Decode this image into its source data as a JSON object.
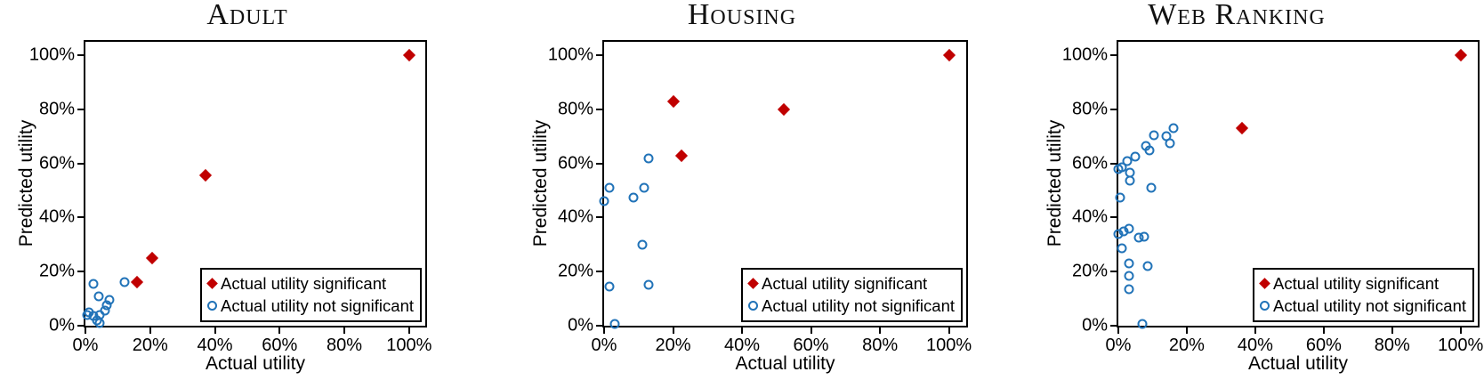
{
  "figure": {
    "legend": {
      "significant": "Actual utility significant",
      "not_significant": "Actual utility not significant"
    },
    "colors": {
      "significant": "#c00000",
      "not_significant": "#2173b8",
      "axis": "#000000",
      "background": "#ffffff"
    }
  },
  "chart_data": [
    {
      "type": "scatter",
      "title": "Adult",
      "xlabel": "Actual utility",
      "ylabel": "Predicted utility",
      "xlim": [
        0,
        105
      ],
      "ylim": [
        0,
        105
      ],
      "grid": false,
      "legend_position": "lower right",
      "tick_values": [
        0,
        20,
        40,
        60,
        80,
        100
      ],
      "xticks": [
        "0%",
        "20%",
        "40%",
        "60%",
        "80%",
        "100%"
      ],
      "yticks": [
        "0%",
        "20%",
        "40%",
        "60%",
        "80%",
        "100%"
      ],
      "series": [
        {
          "name": "Actual utility significant",
          "marker": "diamond",
          "color": "#c00000",
          "points": [
            [
              100,
              100
            ],
            [
              37,
              55.5
            ],
            [
              20.5,
              25
            ],
            [
              16,
              16
            ]
          ]
        },
        {
          "name": "Actual utility not significant",
          "marker": "circle",
          "color": "#2173b8",
          "points": [
            [
              2.5,
              15.5
            ],
            [
              12,
              16
            ],
            [
              4,
              11
            ],
            [
              7.5,
              9.5
            ],
            [
              6.5,
              7.5
            ],
            [
              6,
              5.5
            ],
            [
              1,
              5
            ],
            [
              0.5,
              4
            ],
            [
              2.5,
              3.5
            ],
            [
              4.5,
              4
            ],
            [
              3.5,
              2
            ],
            [
              4.5,
              1
            ]
          ]
        }
      ]
    },
    {
      "type": "scatter",
      "title": "Housing",
      "xlabel": "Actual utility",
      "ylabel": "Predicted utility",
      "xlim": [
        0,
        105
      ],
      "ylim": [
        0,
        105
      ],
      "grid": false,
      "legend_position": "lower right",
      "tick_values": [
        0,
        20,
        40,
        60,
        80,
        100
      ],
      "xticks": [
        "0%",
        "20%",
        "40%",
        "60%",
        "80%",
        "100%"
      ],
      "yticks": [
        "0%",
        "20%",
        "40%",
        "60%",
        "80%",
        "100%"
      ],
      "series": [
        {
          "name": "Actual utility significant",
          "marker": "diamond",
          "color": "#c00000",
          "points": [
            [
              100,
              100
            ],
            [
              20,
              83
            ],
            [
              52,
              80
            ],
            [
              22.5,
              63
            ]
          ]
        },
        {
          "name": "Actual utility not significant",
          "marker": "circle",
          "color": "#2173b8",
          "points": [
            [
              13,
              62
            ],
            [
              11.5,
              51
            ],
            [
              8.5,
              47.5
            ],
            [
              1.5,
              51
            ],
            [
              0,
              46
            ],
            [
              11,
              30
            ],
            [
              1.5,
              14.5
            ],
            [
              13,
              15
            ],
            [
              3,
              0.5
            ]
          ]
        }
      ]
    },
    {
      "type": "scatter",
      "title": "Web Ranking",
      "xlabel": "Actual utility",
      "ylabel": "Predicted utility",
      "xlim": [
        0,
        105
      ],
      "ylim": [
        0,
        105
      ],
      "grid": false,
      "legend_position": "lower right",
      "tick_values": [
        0,
        20,
        40,
        60,
        80,
        100
      ],
      "xticks": [
        "0%",
        "20%",
        "40%",
        "60%",
        "80%",
        "100%"
      ],
      "yticks": [
        "0%",
        "20%",
        "40%",
        "60%",
        "80%",
        "100%"
      ],
      "series": [
        {
          "name": "Actual utility significant",
          "marker": "diamond",
          "color": "#c00000",
          "points": [
            [
              100,
              100
            ],
            [
              36,
              73
            ]
          ]
        },
        {
          "name": "Actual utility not significant",
          "marker": "circle",
          "color": "#2173b8",
          "points": [
            [
              16,
              73
            ],
            [
              14,
              70
            ],
            [
              15,
              67.5
            ],
            [
              10.5,
              70.5
            ],
            [
              8,
              66.5
            ],
            [
              9,
              65
            ],
            [
              5,
              62.5
            ],
            [
              2.5,
              61
            ],
            [
              1,
              58.5
            ],
            [
              0,
              58
            ],
            [
              3.5,
              56.5
            ],
            [
              3.5,
              53.5
            ],
            [
              9.5,
              51
            ],
            [
              0.5,
              47.5
            ],
            [
              3,
              36
            ],
            [
              1.5,
              35
            ],
            [
              0,
              34
            ],
            [
              6,
              32.5
            ],
            [
              7.5,
              33
            ],
            [
              1,
              28.5
            ],
            [
              3,
              23
            ],
            [
              8.5,
              22
            ],
            [
              3,
              18.5
            ],
            [
              3,
              13.5
            ],
            [
              7,
              0.5
            ]
          ]
        }
      ]
    }
  ]
}
